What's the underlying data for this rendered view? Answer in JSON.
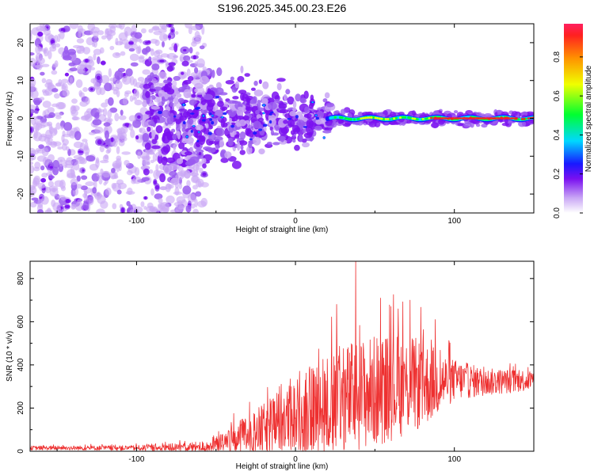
{
  "title": "S196.2025.345.00.23.E26",
  "colors": {
    "line": "#ee3030",
    "blob_light": "#c9a6f5",
    "blob_mid": "#9a5cf0",
    "blob_dark": "#7a10f0"
  },
  "chart_data": [
    {
      "type": "heatmap",
      "name": "spectrogram",
      "xlabel": "Height of straight line (km)",
      "ylabel": "Frequency (Hz)",
      "xlim": [
        -167,
        150
      ],
      "ylim": [
        -25,
        25
      ],
      "xticks": [
        {
          "value": -100,
          "label": "-100"
        },
        {
          "value": 0,
          "label": "0"
        },
        {
          "value": 100,
          "label": "100"
        }
      ],
      "yticks": [
        {
          "value": 20,
          "label": "20"
        },
        {
          "value": 10,
          "label": "10"
        },
        {
          "value": 0,
          "label": "0"
        },
        {
          "value": -10,
          "label": "-10"
        },
        {
          "value": -20,
          "label": "-20"
        }
      ],
      "colorbar": {
        "label": "Normalized spectral amplitude",
        "range": [
          0,
          0.97
        ],
        "ticks": [
          {
            "value": 0.0,
            "label": "0.0"
          },
          {
            "value": 0.2,
            "label": "0.2"
          },
          {
            "value": 0.4,
            "label": "0.4"
          },
          {
            "value": 0.6,
            "label": "0.6"
          },
          {
            "value": 0.8,
            "label": "0.8"
          }
        ],
        "colormap": [
          "#ffffff",
          "#c9a6f5",
          "#7a10f0",
          "#1818ff",
          "#00d8ff",
          "#00ff30",
          "#f0ff00",
          "#ff9000",
          "#ff0000"
        ]
      },
      "description_of_structure": {
        "noise_region_x": [
          -167,
          -60
        ],
        "signal_line_x": [
          20,
          150
        ],
        "signal_line_freq": 0
      }
    },
    {
      "type": "line",
      "name": "snr",
      "xlabel": "Height of straight line (km)",
      "ylabel": "SNR (10 * v/v)",
      "xlim": [
        -167,
        150
      ],
      "ylim": [
        0,
        880
      ],
      "xticks": [
        {
          "value": -100,
          "label": "-100"
        },
        {
          "value": 0,
          "label": "0"
        },
        {
          "value": 100,
          "label": "100"
        }
      ],
      "yticks": [
        {
          "value": 0,
          "label": "0"
        },
        {
          "value": 200,
          "label": "200"
        },
        {
          "value": 400,
          "label": "400"
        },
        {
          "value": 600,
          "label": "600"
        },
        {
          "value": 800,
          "label": "800"
        }
      ],
      "envelope": {
        "x": [
          -167,
          -100,
          -60,
          -50,
          -40,
          -20,
          0,
          20,
          40,
          60,
          80,
          100,
          120,
          150
        ],
        "base": [
          15,
          15,
          20,
          30,
          50,
          100,
          160,
          220,
          260,
          300,
          310,
          330,
          320,
          330
        ],
        "spread": [
          12,
          15,
          30,
          50,
          90,
          150,
          220,
          300,
          330,
          320,
          260,
          120,
          80,
          60
        ]
      },
      "peaks": [
        {
          "x": 38,
          "y": 880
        },
        {
          "x": 72,
          "y": 700
        },
        {
          "x": 26,
          "y": 680
        },
        {
          "x": 60,
          "y": 670
        },
        {
          "x": 88,
          "y": 610
        },
        {
          "x": -10,
          "y": 300
        }
      ]
    }
  ]
}
